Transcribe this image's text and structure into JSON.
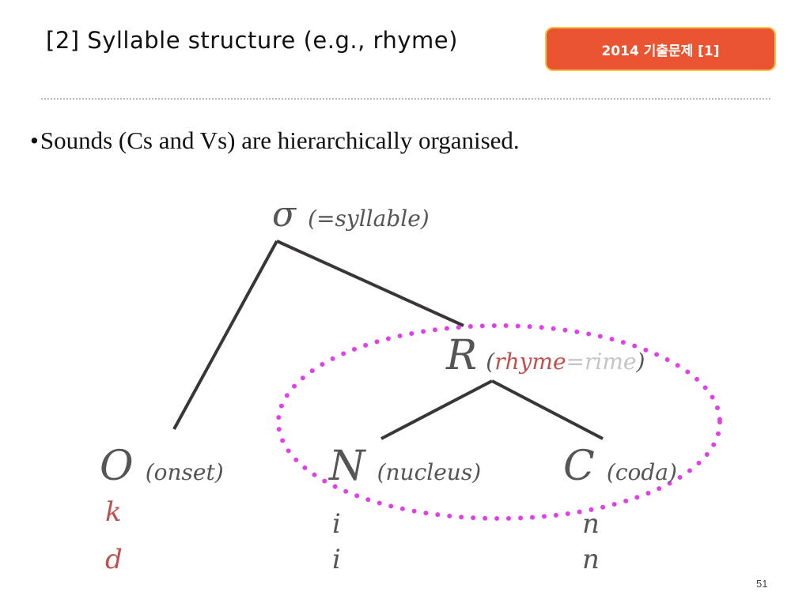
{
  "header": {
    "title": "[2] Syllable structure (e.g., rhyme)",
    "badge": "2014 기출문제 [1]"
  },
  "bullet": {
    "marker": "•",
    "text": "Sounds (Cs and Vs) are hierarchically organised."
  },
  "tree": {
    "root": {
      "symbol": "σ",
      "label": "(=syllable)"
    },
    "rhyme": {
      "symbol": "R",
      "open": "(",
      "rhyme": "rhyme",
      "eq": "=",
      "rime": "rime",
      "close": ")"
    },
    "onset": {
      "symbol": "O",
      "label": "(onset)",
      "segments": [
        "k",
        "d"
      ]
    },
    "nucleus": {
      "symbol": "N",
      "label": "(nucleus)",
      "segments": [
        "i",
        "i"
      ]
    },
    "coda": {
      "symbol": "C",
      "label": "(coda)",
      "segments": [
        "n",
        "n"
      ]
    }
  },
  "colors": {
    "branch": "#3a3636",
    "rhyme_highlight": "#e040e8",
    "onset_segments": "#c0504d",
    "badge_bg": "#ea5531",
    "badge_border": "#f6c44a"
  },
  "page_number": "51"
}
